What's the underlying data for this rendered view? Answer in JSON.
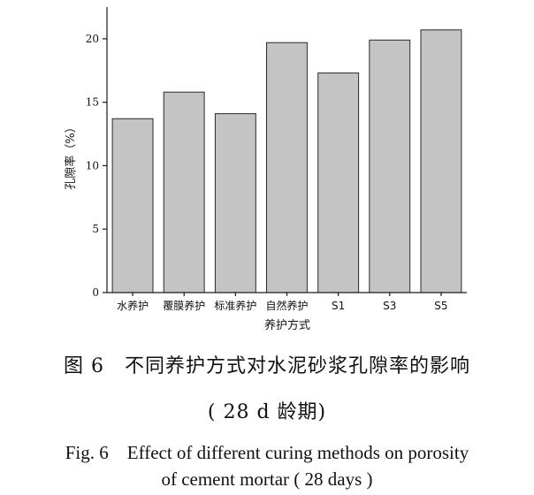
{
  "chart_data": {
    "type": "bar",
    "categories": [
      "水养护",
      "覆膜养护",
      "标准养护",
      "自然养护",
      "S1",
      "S3",
      "S5"
    ],
    "values": [
      13.7,
      15.8,
      14.1,
      19.7,
      17.3,
      19.9,
      20.7
    ],
    "xlabel": "养护方式",
    "ylabel": "孔隙率（%）",
    "ylim": [
      0,
      22.5
    ],
    "yticks": [
      0,
      5,
      10,
      15,
      20
    ],
    "grid": false,
    "legend": "none",
    "colors": {
      "bar_fill": "#c4c4c4",
      "bar_stroke": "#2a2a2a"
    }
  },
  "caption": {
    "zh_line1": "图 6　不同养护方式对水泥砂浆孔隙率的影响",
    "zh_line2": "( 28 d 龄期)",
    "en_line1": "Fig. 6　Effect of different curing methods on porosity",
    "en_line2": "of cement mortar ( 28 days )"
  }
}
